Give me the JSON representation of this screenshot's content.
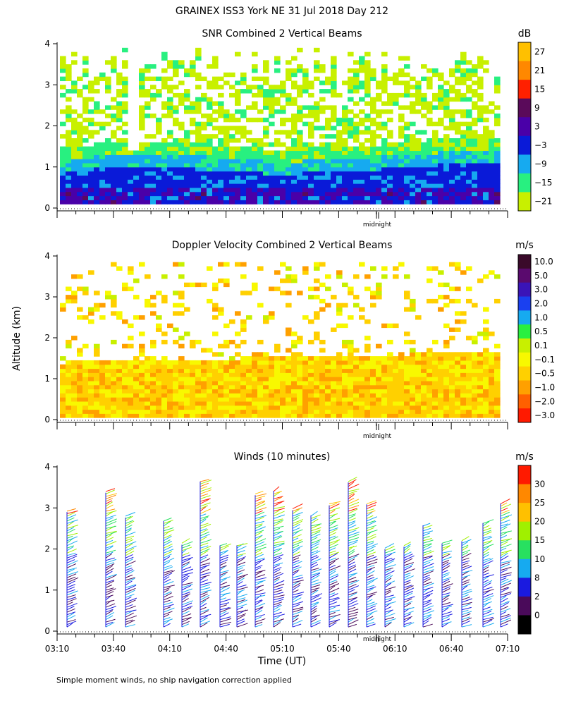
{
  "title": "GRAINEX ISS3 York NE  31 Jul 2018 Day 212",
  "y_label": "Altitude (km)",
  "x_label": "Time (UT)",
  "footnote": "Simple moment winds, no ship navigation correction applied",
  "x_ticks": [
    "03:10",
    "03:40",
    "04:10",
    "04:40",
    "05:10",
    "05:40",
    "06:10",
    "06:40",
    "07:10"
  ],
  "y_ticks": [
    "0",
    "1",
    "2",
    "3",
    "4"
  ],
  "midnight_label": "midnight",
  "panels": [
    {
      "key": "snr",
      "title": "SNR Combined 2 Vertical Beams",
      "unit": "dB",
      "colorbar_labels": [
        "27",
        "21",
        "15",
        "9",
        "3",
        "−3",
        "−9",
        "−15",
        "−21"
      ],
      "colorbar_colors": [
        "#ffc000",
        "#ff8800",
        "#ff2000",
        "#5a0a5a",
        "#4a00a8",
        "#0a1ad8",
        "#16aaf0",
        "#28f080",
        "#c8f000"
      ]
    },
    {
      "key": "doppler",
      "title": "Doppler Velocity Combined 2 Vertical Beams",
      "unit": "m/s",
      "colorbar_labels": [
        "10.0",
        "5.0",
        "3.0",
        "2.0",
        "1.0",
        "0.5",
        "0.1",
        "−0.1",
        "−0.5",
        "−1.0",
        "−2.0",
        "−3.0"
      ],
      "colorbar_colors": [
        "#3a0a2a",
        "#5a0a6e",
        "#3a14b8",
        "#1a40f0",
        "#16aaf0",
        "#28f040",
        "#c8f000",
        "#f8f800",
        "#ffd000",
        "#ffa000",
        "#ff6000",
        "#ff1a00"
      ]
    },
    {
      "key": "winds",
      "title": "Winds (10 minutes)",
      "unit": "m/s",
      "colorbar_labels": [
        "30",
        "25",
        "20",
        "15",
        "10",
        "8",
        "2",
        "0"
      ],
      "colorbar_colors": [
        "#ff1a00",
        "#ff8800",
        "#ffc000",
        "#a0f000",
        "#28e060",
        "#16aaf0",
        "#1a1ae0",
        "#4a0a5a",
        "#000000"
      ]
    }
  ],
  "chart_data": [
    {
      "type": "heatmap",
      "title": "SNR Combined 2 Vertical Beams",
      "xlabel": "Time (UT)",
      "ylabel": "Altitude (km)",
      "xlim": [
        "03:10",
        "07:10"
      ],
      "ylim": [
        0,
        4
      ],
      "units": "dB",
      "color_levels": [
        -21,
        -15,
        -9,
        -3,
        3,
        9,
        15,
        21,
        27
      ],
      "layers": [
        {
          "altitude_km": [
            0.1,
            0.9
          ],
          "typical_dB": -3
        },
        {
          "altitude_km": [
            0.9,
            1.2
          ],
          "typical_dB": -9
        },
        {
          "altitude_km": [
            1.2,
            1.6
          ],
          "typical_dB": -15
        },
        {
          "altitude_km": [
            1.6,
            4.0
          ],
          "typical_dB": -21
        }
      ],
      "annotation": "midnight"
    },
    {
      "type": "heatmap",
      "title": "Doppler Velocity Combined 2 Vertical Beams",
      "xlabel": "Time (UT)",
      "ylabel": "Altitude (km)",
      "xlim": [
        "03:10",
        "07:10"
      ],
      "ylim": [
        0,
        4
      ],
      "units": "m/s",
      "color_levels": [
        -3.0,
        -2.0,
        -1.0,
        -0.5,
        -0.1,
        0.1,
        0.5,
        1.0,
        2.0,
        3.0,
        5.0,
        10.0
      ],
      "layers": [
        {
          "altitude_km": [
            0.05,
            1.5
          ],
          "typical_m_s": -0.5
        },
        {
          "altitude_km": [
            1.5,
            4.0
          ],
          "typical_m_s": -0.5,
          "sparse": true
        }
      ],
      "annotation": "midnight"
    },
    {
      "type": "scatter",
      "subtype": "wind_barbs",
      "title": "Winds (10 minutes)",
      "xlabel": "Time (UT)",
      "ylabel": "Altitude (km)",
      "xlim": [
        "03:10",
        "07:10"
      ],
      "ylim": [
        0,
        4
      ],
      "units": "m/s",
      "color_levels": [
        0,
        2,
        8,
        10,
        15,
        20,
        25,
        30
      ],
      "profile_times": [
        "03:20",
        "03:50",
        "04:00",
        "04:20",
        "04:30",
        "04:40",
        "04:50",
        "05:00",
        "05:10",
        "05:20",
        "05:30",
        "05:40",
        "05:50",
        "06:00",
        "06:10",
        "06:20",
        "06:30",
        "06:40",
        "06:50",
        "07:00"
      ],
      "annotation": "midnight"
    }
  ]
}
